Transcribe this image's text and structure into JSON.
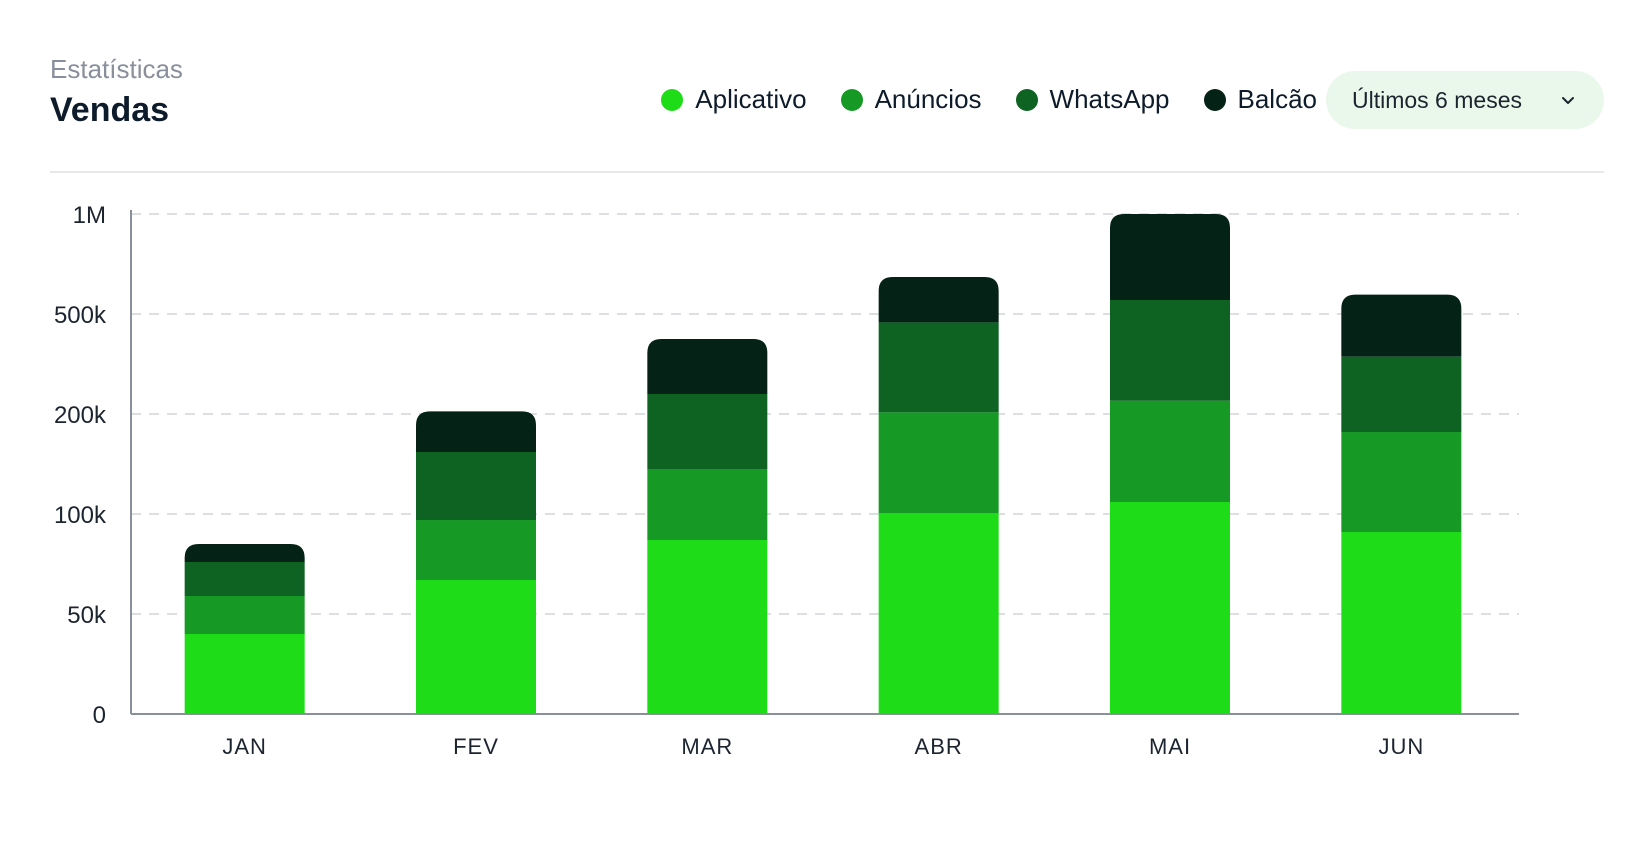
{
  "header": {
    "eyebrow": "Estatísticas",
    "title": "Vendas"
  },
  "period_select": {
    "value": "Últimos 6 meses",
    "icon": "chevron-down-icon"
  },
  "colors": {
    "Aplicativo": "#1edc17",
    "Anúncios": "#169a25",
    "WhatsApp": "#0f6322",
    "Balcão": "#052216"
  },
  "chart_data": {
    "type": "bar",
    "stacked": true,
    "categories": [
      "JAN",
      "FEV",
      "MAR",
      "ABR",
      "MAI",
      "JUN"
    ],
    "y_ticks": [
      "0",
      "50k",
      "100k",
      "200k",
      "500k",
      "1M"
    ],
    "y_tick_values": [
      0,
      50000,
      100000,
      200000,
      500000,
      1000000
    ],
    "ylim": [
      0,
      1000000
    ],
    "grid": true,
    "legend_position": "top-right",
    "series": [
      {
        "name": "Aplicativo",
        "values": [
          40000,
          67000,
          87000,
          101000,
          112000,
          91000
        ]
      },
      {
        "name": "Anúncios",
        "values": [
          19000,
          30000,
          58000,
          104000,
          128000,
          91000
        ]
      },
      {
        "name": "WhatsApp",
        "values": [
          17000,
          65000,
          115000,
          270000,
          330000,
          190000
        ]
      },
      {
        "name": "Balcão",
        "values": [
          9000,
          46000,
          165000,
          210000,
          480000,
          225000
        ]
      }
    ]
  }
}
